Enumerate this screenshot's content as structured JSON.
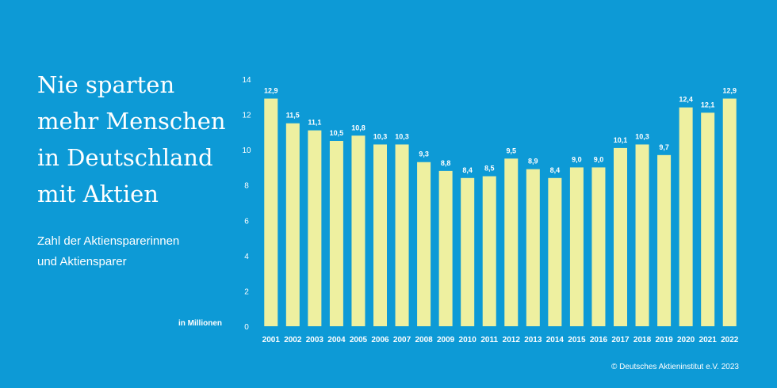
{
  "headline": [
    "Nie sparten",
    "mehr Menschen",
    "in Deutschland",
    "mit Aktien"
  ],
  "subtitle": [
    "Zahl der Aktiensparerinnen",
    "und Aktiensparer"
  ],
  "copyright": "© Deutsches Aktieninstitut e.V. 2023",
  "colors": {
    "background": "#0d9ad6",
    "bar": "#eef0a0",
    "text": "#ffffff"
  },
  "chart_data": {
    "type": "bar",
    "title": "Nie sparten mehr Menschen in Deutschland mit Aktien",
    "subtitle": "Zahl der Aktiensparerinnen und Aktiensparer",
    "ylabel": "in Millionen",
    "xlabel": "",
    "ylim": [
      0,
      14
    ],
    "yticks": [
      0,
      2,
      4,
      6,
      8,
      10,
      12,
      14
    ],
    "grid": false,
    "categories": [
      "2001",
      "2002",
      "2003",
      "2004",
      "2005",
      "2006",
      "2007",
      "2008",
      "2009",
      "2010",
      "2011",
      "2012",
      "2013",
      "2014",
      "2015",
      "2016",
      "2017",
      "2018",
      "2019",
      "2020",
      "2021",
      "2022"
    ],
    "values": [
      12.9,
      11.5,
      11.1,
      10.5,
      10.8,
      10.3,
      10.3,
      9.3,
      8.8,
      8.4,
      8.5,
      9.5,
      8.9,
      8.4,
      9.0,
      9.0,
      10.1,
      10.3,
      9.7,
      12.4,
      12.1,
      12.9
    ],
    "labels": [
      "12,9",
      "11,5",
      "11,1",
      "10,5",
      "10,8",
      "10,3",
      "10,3",
      "9,3",
      "8,8",
      "8,4",
      "8,5",
      "9,5",
      "8,9",
      "8,4",
      "9,0",
      "9,0",
      "10,1",
      "10,3",
      "9,7",
      "12,4",
      "12,1",
      "12,9"
    ]
  }
}
